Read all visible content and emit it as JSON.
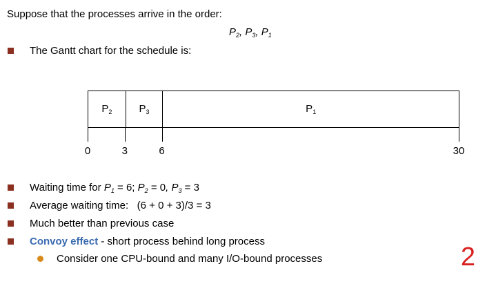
{
  "intro": "Suppose that the processes arrive in the order:",
  "order": {
    "p1": {
      "name": "P",
      "sub": "2"
    },
    "p2": {
      "name": "P",
      "sub": "3"
    },
    "p3": {
      "name": "P",
      "sub": "1"
    },
    "sep": ","
  },
  "gantt_caption": "The Gantt chart for the schedule is:",
  "gantt": {
    "segments": [
      {
        "name": "P",
        "sub": "2",
        "start": 0,
        "end": 3
      },
      {
        "name": "P",
        "sub": "3",
        "start": 3,
        "end": 6
      },
      {
        "name": "P",
        "sub": "1",
        "start": 6,
        "end": 30
      }
    ],
    "ticks": [
      "0",
      "3",
      "6",
      "30"
    ],
    "total": 30
  },
  "bullets": {
    "waiting": {
      "prefix": "Waiting time for ",
      "a_var": "P",
      "a_sub": "1",
      "a_val": " = 6;",
      "b_var": "P",
      "b_sub": "2",
      "b_val": " = 0",
      "c_sep": ",",
      "c_var": "P",
      "c_sub": "3",
      "c_val": " = 3"
    },
    "average": "Average waiting time:   (6 + 0 + 3)/3 = 3",
    "better": "Much better than previous case",
    "convoy_bold": "Convoy effect",
    "convoy_rest": " - short process behind long process",
    "consider": "Consider one CPU-bound and many I/O-bound processes"
  },
  "page_number": "2",
  "colors": {
    "bullet": "#8b3020",
    "sub_bullet": "#d98a1c",
    "accent": "#3a6ab0",
    "page_number": "#d92020"
  }
}
